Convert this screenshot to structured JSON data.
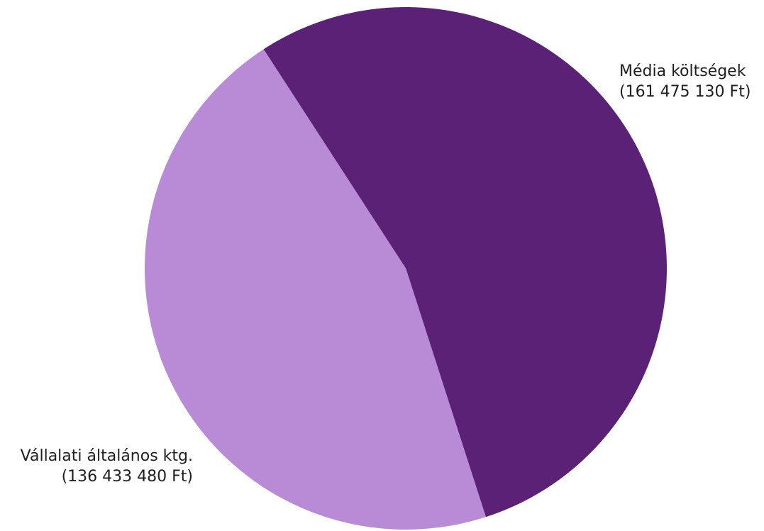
{
  "chart_data": {
    "type": "pie",
    "title": "",
    "slices": [
      {
        "label": "Média költségek",
        "value_text": "(161 475 130 Ft)",
        "value": 161475130,
        "color": "#5b2177"
      },
      {
        "label": "Vállalati általános ktg.",
        "value_text": "(136 433 480 Ft)",
        "value": 136433480,
        "color": "#b98ad6"
      }
    ]
  }
}
